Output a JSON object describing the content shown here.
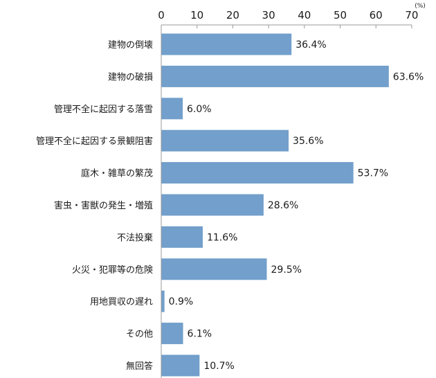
{
  "chart_data": {
    "type": "bar",
    "orientation": "horizontal",
    "categories": [
      "建物の倒壊",
      "建物の破損",
      "管理不全に起因する落雪",
      "管理不全に起因する景観阻害",
      "庭木・雑草の繁茂",
      "害虫・害獣の発生・増殖",
      "不法投棄",
      "火災・犯罪等の危険",
      "用地買収の遅れ",
      "その他",
      "無回答"
    ],
    "values": [
      36.4,
      63.6,
      6.0,
      35.6,
      53.7,
      28.6,
      11.6,
      29.5,
      0.9,
      6.1,
      10.7
    ],
    "value_labels": [
      "36.4%",
      "63.6%",
      "6.0%",
      "35.6%",
      "53.7%",
      "28.6%",
      "11.6%",
      "29.5%",
      "0.9%",
      "6.1%",
      "10.7%"
    ],
    "x_ticks": [
      "0",
      "10",
      "20",
      "30",
      "40",
      "50",
      "60",
      "70"
    ],
    "x_tick_values": [
      0,
      10,
      20,
      30,
      40,
      50,
      60,
      70
    ],
    "x_unit": "(%)",
    "xlim": [
      0,
      70
    ],
    "axis_position": "top",
    "grid": false,
    "bar_color": "#729fcb",
    "title": "",
    "xlabel": "",
    "ylabel": ""
  }
}
